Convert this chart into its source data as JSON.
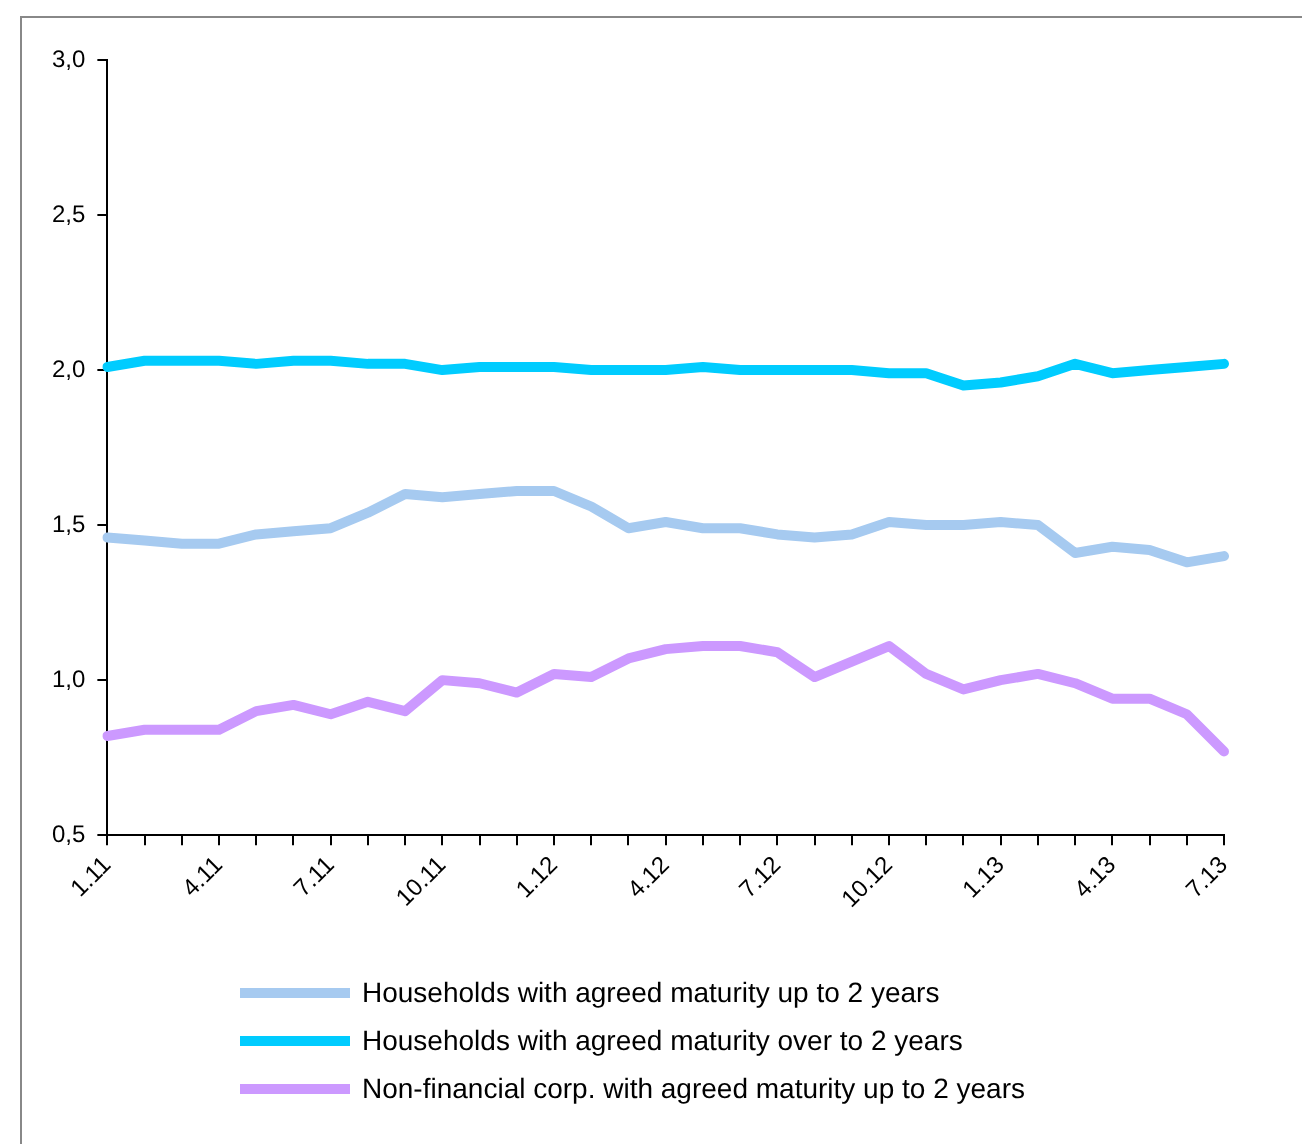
{
  "chart_data": {
    "type": "line",
    "categories": [
      "1.11",
      null,
      null,
      "4.11",
      null,
      null,
      "7.11",
      null,
      null,
      "10.11",
      null,
      null,
      "1.12",
      null,
      null,
      "4.12",
      null,
      null,
      "7.12",
      null,
      null,
      "10.12",
      null,
      null,
      "1.13",
      null,
      null,
      "4.13",
      null,
      null,
      "7.13"
    ],
    "series": [
      {
        "name": "Households with agreed maturity up to 2 years",
        "color": "#a6caf0",
        "values": [
          1.46,
          1.45,
          1.44,
          1.44,
          1.47,
          1.48,
          1.49,
          1.54,
          1.6,
          1.59,
          1.6,
          1.61,
          1.61,
          1.56,
          1.49,
          1.51,
          1.49,
          1.49,
          1.47,
          1.46,
          1.47,
          1.51,
          1.5,
          1.5,
          1.51,
          1.5,
          1.41,
          1.43,
          1.42,
          1.38,
          1.4
        ]
      },
      {
        "name": "Households with agreed maturity over to 2 years",
        "color": "#00ccff",
        "values": [
          2.01,
          2.03,
          2.03,
          2.03,
          2.02,
          2.03,
          2.03,
          2.02,
          2.02,
          2.0,
          2.01,
          2.01,
          2.01,
          2.0,
          2.0,
          2.0,
          2.01,
          2.0,
          2.0,
          2.0,
          2.0,
          1.99,
          1.99,
          1.95,
          1.96,
          1.98,
          2.02,
          1.99,
          2.0,
          2.01,
          2.02
        ]
      },
      {
        "name": "Non-financial corp. with agreed maturity up to 2 years",
        "color": "#cc99ff",
        "values": [
          0.82,
          0.84,
          0.84,
          0.84,
          0.9,
          0.92,
          0.89,
          0.93,
          0.9,
          1.0,
          0.99,
          0.96,
          1.02,
          1.01,
          1.07,
          1.1,
          1.11,
          1.11,
          1.09,
          1.01,
          1.06,
          1.11,
          1.02,
          0.97,
          1.0,
          1.02,
          0.99,
          0.94,
          0.94,
          0.89,
          0.77
        ]
      }
    ],
    "ylim": [
      0.5,
      3.0
    ],
    "yticks": [
      {
        "value": 0.5,
        "label": "0,5"
      },
      {
        "value": 1.0,
        "label": "1,0"
      },
      {
        "value": 1.5,
        "label": "1,5"
      },
      {
        "value": 2.0,
        "label": "2,0"
      },
      {
        "value": 2.5,
        "label": "2,5"
      },
      {
        "value": 3.0,
        "label": "3,0"
      }
    ],
    "grid": false,
    "legend": "bottom",
    "marker": "none",
    "line_style": "solid"
  }
}
